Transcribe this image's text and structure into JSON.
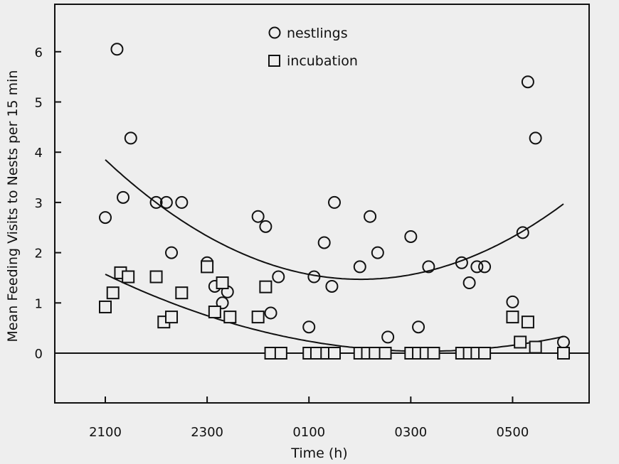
{
  "chart_data": {
    "type": "scatter",
    "xlabel": "Time (h)",
    "ylabel": "Mean Feeding Visits to Nests per 15 min",
    "x_tick_labels": [
      "2100",
      "2300",
      "0100",
      "0300",
      "0500"
    ],
    "y_tick_labels": [
      "0",
      "1",
      "2",
      "3",
      "4",
      "5",
      "6"
    ],
    "xlim": [
      20.0,
      30.0
    ],
    "ylim": [
      -1.0,
      6.7
    ],
    "grid": false,
    "legend_position": "top-center",
    "zero_line": true,
    "series": [
      {
        "name": "nestlings",
        "marker": "circle",
        "points": [
          [
            21.0,
            2.7
          ],
          [
            21.23,
            6.05
          ],
          [
            21.35,
            3.1
          ],
          [
            21.5,
            4.28
          ],
          [
            22.0,
            3.0
          ],
          [
            22.2,
            3.0
          ],
          [
            22.3,
            2.0
          ],
          [
            22.5,
            3.0
          ],
          [
            23.0,
            1.8
          ],
          [
            23.15,
            1.33
          ],
          [
            23.3,
            1.0
          ],
          [
            23.4,
            1.22
          ],
          [
            24.0,
            2.72
          ],
          [
            24.15,
            2.52
          ],
          [
            24.25,
            0.8
          ],
          [
            24.4,
            1.52
          ],
          [
            25.0,
            0.52
          ],
          [
            25.1,
            1.52
          ],
          [
            25.3,
            2.2
          ],
          [
            25.45,
            1.33
          ],
          [
            25.5,
            3.0
          ],
          [
            26.0,
            1.72
          ],
          [
            26.2,
            2.72
          ],
          [
            26.35,
            2.0
          ],
          [
            26.55,
            0.32
          ],
          [
            27.0,
            2.32
          ],
          [
            27.15,
            0.52
          ],
          [
            27.35,
            1.72
          ],
          [
            28.0,
            1.8
          ],
          [
            28.15,
            1.4
          ],
          [
            28.3,
            1.72
          ],
          [
            28.45,
            1.72
          ],
          [
            29.0,
            1.02
          ],
          [
            29.2,
            2.4
          ],
          [
            29.3,
            5.4
          ],
          [
            29.45,
            4.28
          ],
          [
            30.0,
            0.22
          ]
        ]
      },
      {
        "name": "incubation",
        "marker": "square",
        "points": [
          [
            21.0,
            0.92
          ],
          [
            21.15,
            1.2
          ],
          [
            21.3,
            1.6
          ],
          [
            21.45,
            1.52
          ],
          [
            22.0,
            1.52
          ],
          [
            22.15,
            0.62
          ],
          [
            22.3,
            0.72
          ],
          [
            22.5,
            1.2
          ],
          [
            23.0,
            1.72
          ],
          [
            23.15,
            0.82
          ],
          [
            23.3,
            1.4
          ],
          [
            23.45,
            0.72
          ],
          [
            24.0,
            0.72
          ],
          [
            24.15,
            1.32
          ],
          [
            24.25,
            0.0
          ],
          [
            24.45,
            0.0
          ],
          [
            25.0,
            0.0
          ],
          [
            25.15,
            0.0
          ],
          [
            25.35,
            0.0
          ],
          [
            25.5,
            0.0
          ],
          [
            26.0,
            0.0
          ],
          [
            26.15,
            0.0
          ],
          [
            26.3,
            0.0
          ],
          [
            26.5,
            0.0
          ],
          [
            27.0,
            0.0
          ],
          [
            27.15,
            0.0
          ],
          [
            27.3,
            0.0
          ],
          [
            27.45,
            0.0
          ],
          [
            28.0,
            0.0
          ],
          [
            28.15,
            0.0
          ],
          [
            28.3,
            0.0
          ],
          [
            28.45,
            0.0
          ],
          [
            29.0,
            0.72
          ],
          [
            29.15,
            0.22
          ],
          [
            29.3,
            0.62
          ],
          [
            29.45,
            0.12
          ],
          [
            30.0,
            0.0
          ]
        ]
      }
    ],
    "fit_curves": [
      {
        "name": "nestlings",
        "type": "quadratic",
        "x_range": [
          21.0,
          30.0
        ],
        "points": [
          [
            21.0,
            3.85
          ],
          [
            26.0,
            1.47
          ],
          [
            30.0,
            2.97
          ]
        ]
      },
      {
        "name": "incubation",
        "type": "quadratic",
        "x_range": [
          21.0,
          30.0
        ],
        "points": [
          [
            21.0,
            1.57
          ],
          [
            27.0,
            0.04
          ],
          [
            30.0,
            0.33
          ]
        ]
      }
    ]
  }
}
